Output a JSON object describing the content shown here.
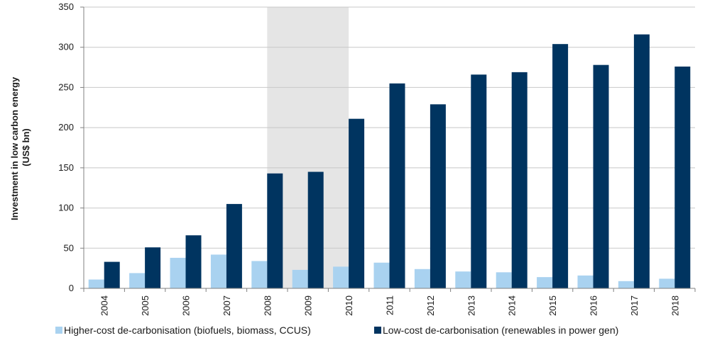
{
  "chart_data": {
    "type": "bar",
    "categories": [
      "2004",
      "2005",
      "2006",
      "2007",
      "2008",
      "2009",
      "2010",
      "2011",
      "2012",
      "2013",
      "2014",
      "2015",
      "2016",
      "2017",
      "2018"
    ],
    "series": [
      {
        "name": "Higher-cost de-carbonisation (biofuels, biomass, CCUS)",
        "color": "#a9d2f0",
        "values": [
          11,
          19,
          38,
          42,
          34,
          23,
          27,
          32,
          24,
          21,
          20,
          14,
          16,
          9,
          12
        ]
      },
      {
        "name": "Low-cost de-carbonisation (renewables in power gen)",
        "color": "#003460",
        "values": [
          33,
          51,
          66,
          105,
          143,
          145,
          211,
          255,
          229,
          266,
          269,
          304,
          278,
          316,
          276
        ]
      }
    ],
    "ylabel_line1": "Investment in low carbon energy",
    "ylabel_line2": "(US$ bn)",
    "ylim": [
      0,
      350
    ],
    "yticks": [
      "0",
      "50",
      "100",
      "150",
      "200",
      "250",
      "300",
      "350"
    ],
    "shaded_region": {
      "from": "2008",
      "to": "2010",
      "color": "#e5e5e5"
    },
    "grid": true,
    "legend_position": "bottom",
    "colors": {
      "gridline": "#c8c8c8",
      "axis": "#808080"
    }
  }
}
